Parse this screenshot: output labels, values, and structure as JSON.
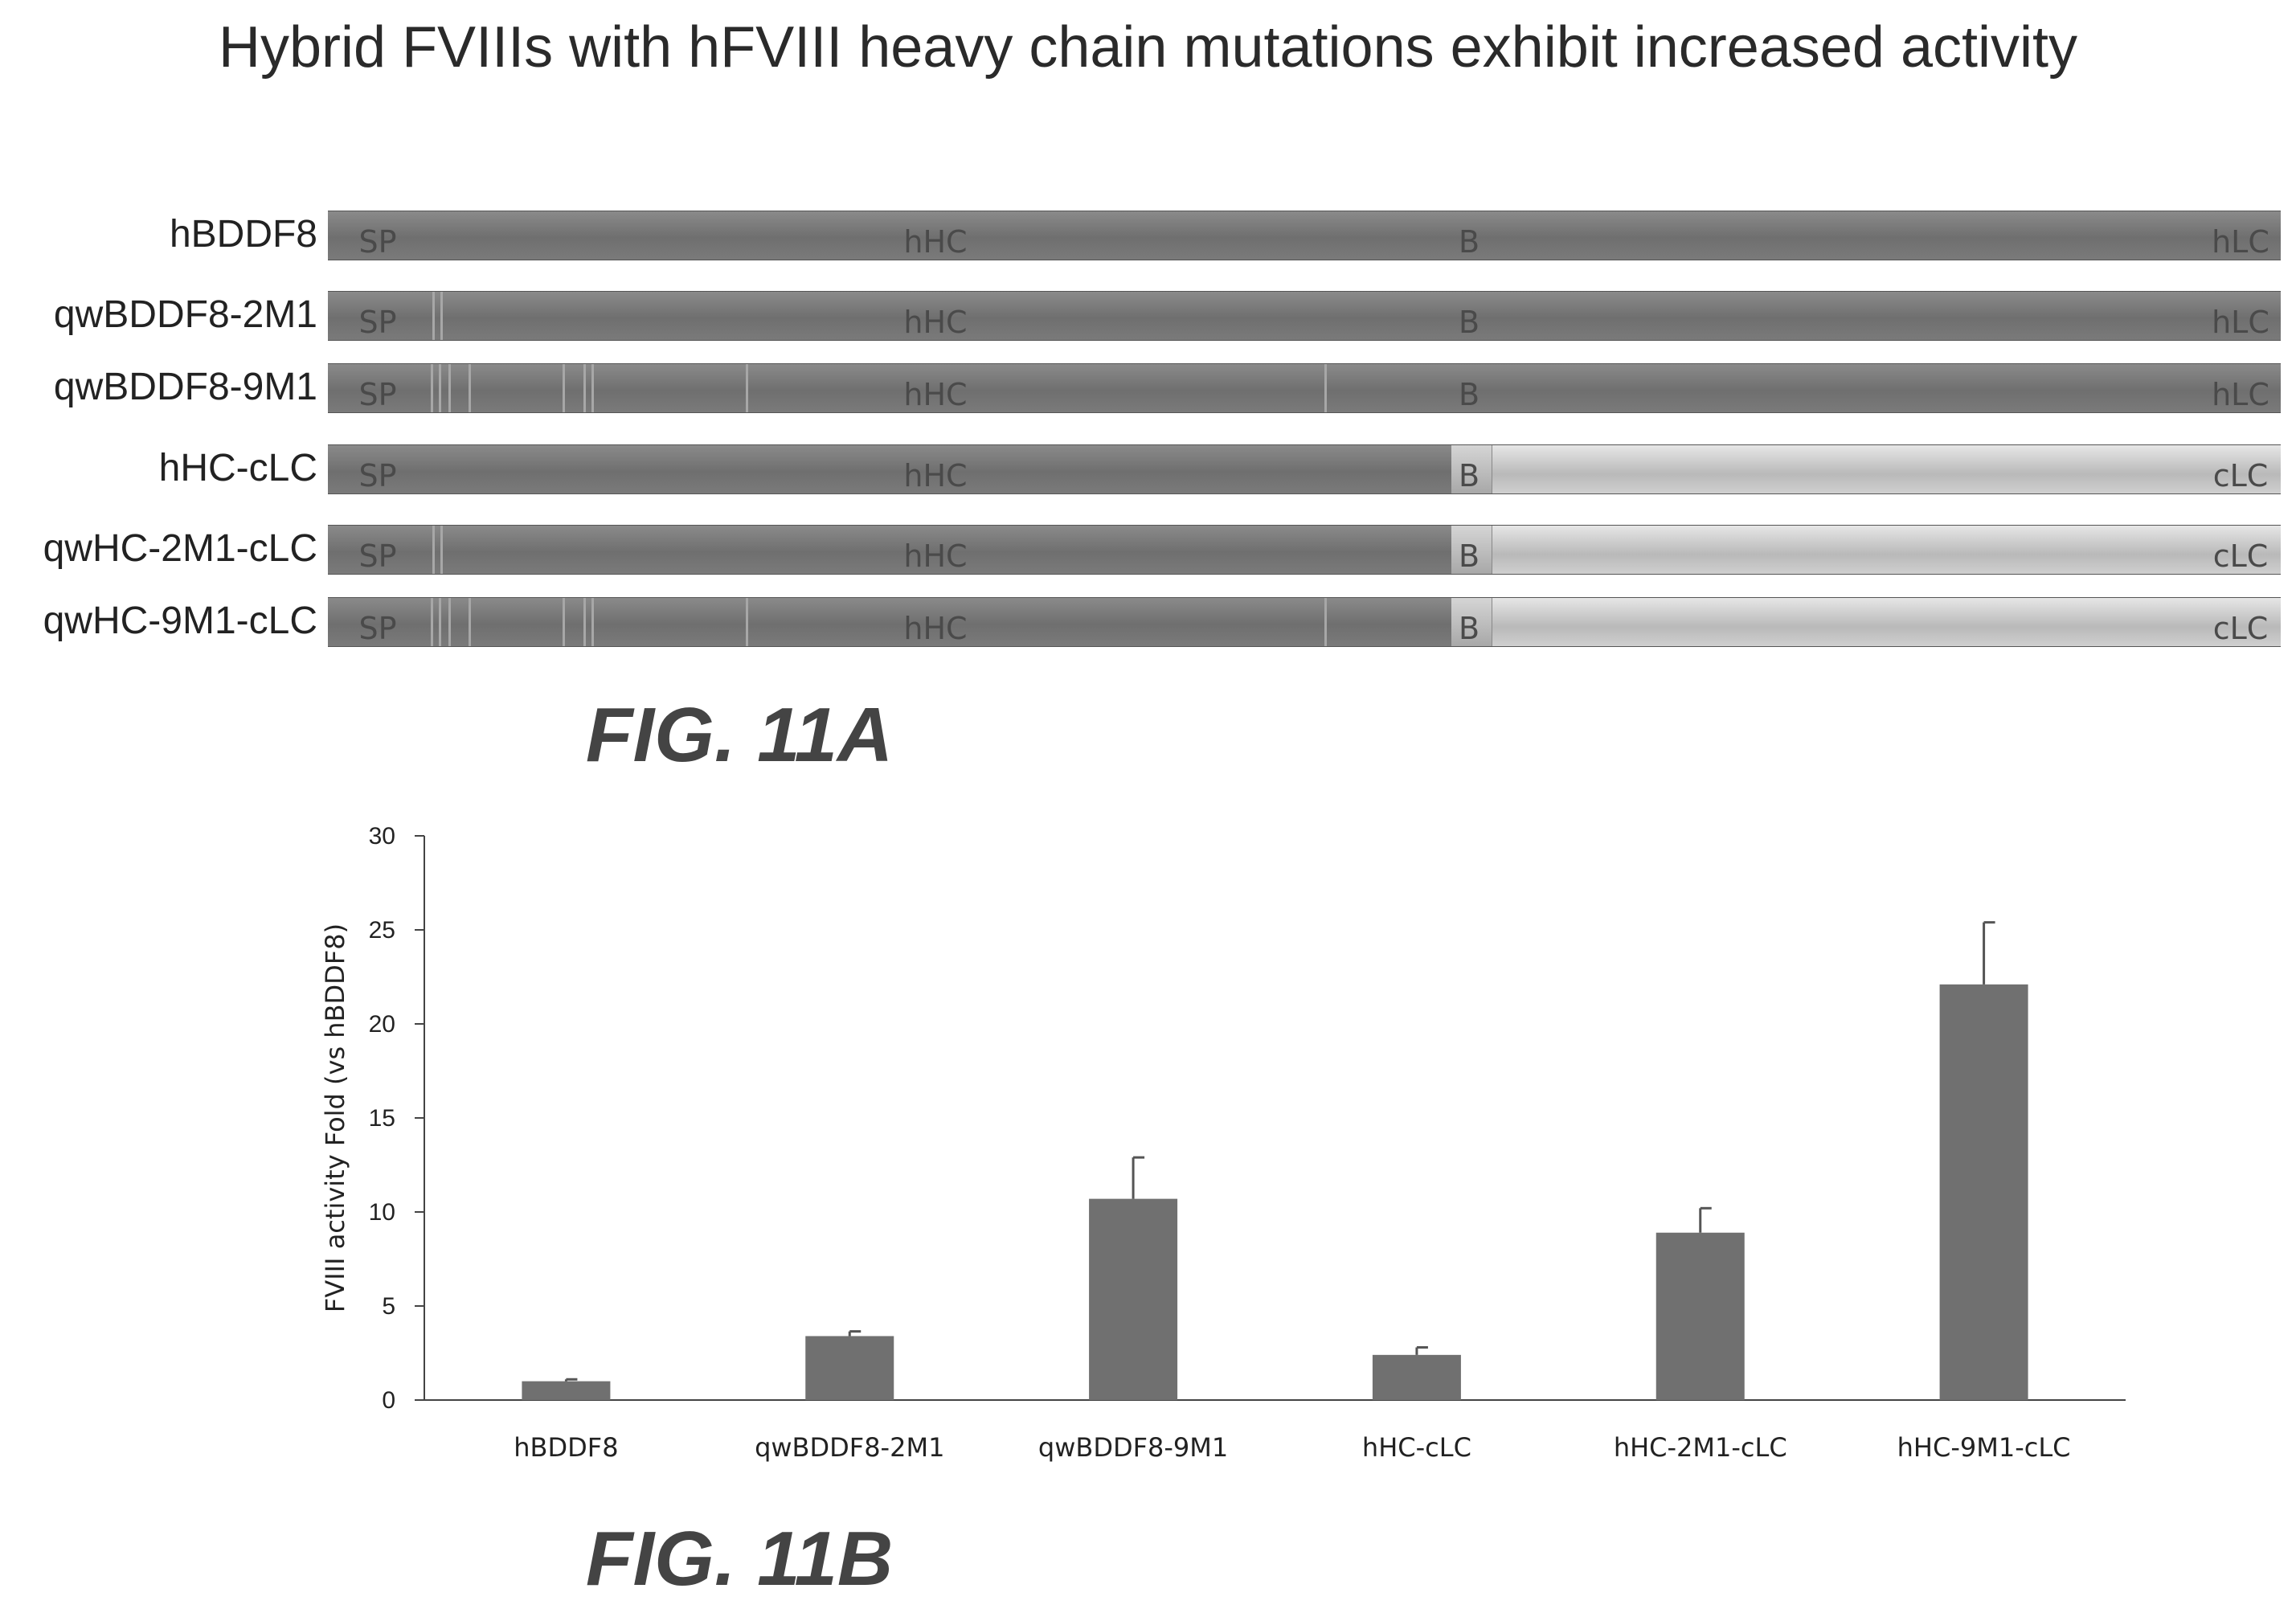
{
  "title": "Hybrid FVIIIs with hFVIII heavy chain mutations exhibit increased activity",
  "fig_a": {
    "caption": "FIG. 11A",
    "constructs": [
      {
        "label": "hBDDF8",
        "segments": {
          "sp": "SP",
          "hc": "hHC",
          "b": "B",
          "lc": "hLC"
        },
        "lc_type": "human"
      },
      {
        "label": "qwBDDF8-2M1",
        "segments": {
          "sp": "SP",
          "hc": "hHC",
          "b": "B",
          "lc": "hLC"
        },
        "lc_type": "human"
      },
      {
        "label": "qwBDDF8-9M1",
        "segments": {
          "sp": "SP",
          "hc": "hHC",
          "b": "B",
          "lc": "hLC"
        },
        "lc_type": "human"
      },
      {
        "label": "hHC-cLC",
        "segments": {
          "sp": "SP",
          "hc": "hHC",
          "b": "B",
          "lc": "cLC"
        },
        "lc_type": "canine"
      },
      {
        "label": "qwHC-2M1-cLC",
        "segments": {
          "sp": "SP",
          "hc": "hHC",
          "b": "B",
          "lc": "cLC"
        },
        "lc_type": "canine"
      },
      {
        "label": "qwHC-9M1-cLC",
        "segments": {
          "sp": "SP",
          "hc": "hHC",
          "b": "B",
          "lc": "cLC"
        },
        "lc_type": "canine"
      }
    ],
    "colors": {
      "human": "#7a7a7a",
      "canine": "#d0d0d0",
      "mutation": "#a7a7a7"
    }
  },
  "fig_b": {
    "caption": "FIG. 11B"
  },
  "chart_data": {
    "type": "bar",
    "categories": [
      "hBDDF8",
      "qwBDDF8-2M1",
      "qwBDDF8-9M1",
      "hHC-cLC",
      "hHC-2M1-cLC",
      "hHC-9M1-cLC"
    ],
    "values": [
      1.0,
      3.4,
      10.7,
      2.4,
      8.9,
      22.1
    ],
    "error": [
      0.1,
      0.25,
      2.2,
      0.4,
      1.3,
      3.3
    ],
    "title": "",
    "xlabel": "",
    "ylabel": "FVIII activity Fold (vs hBDDF8)",
    "ylim": [
      0,
      30
    ],
    "yticks": [
      0,
      5,
      10,
      15,
      20,
      25,
      30
    ],
    "grid": false,
    "legend": "none",
    "bar_color": "#707070"
  }
}
